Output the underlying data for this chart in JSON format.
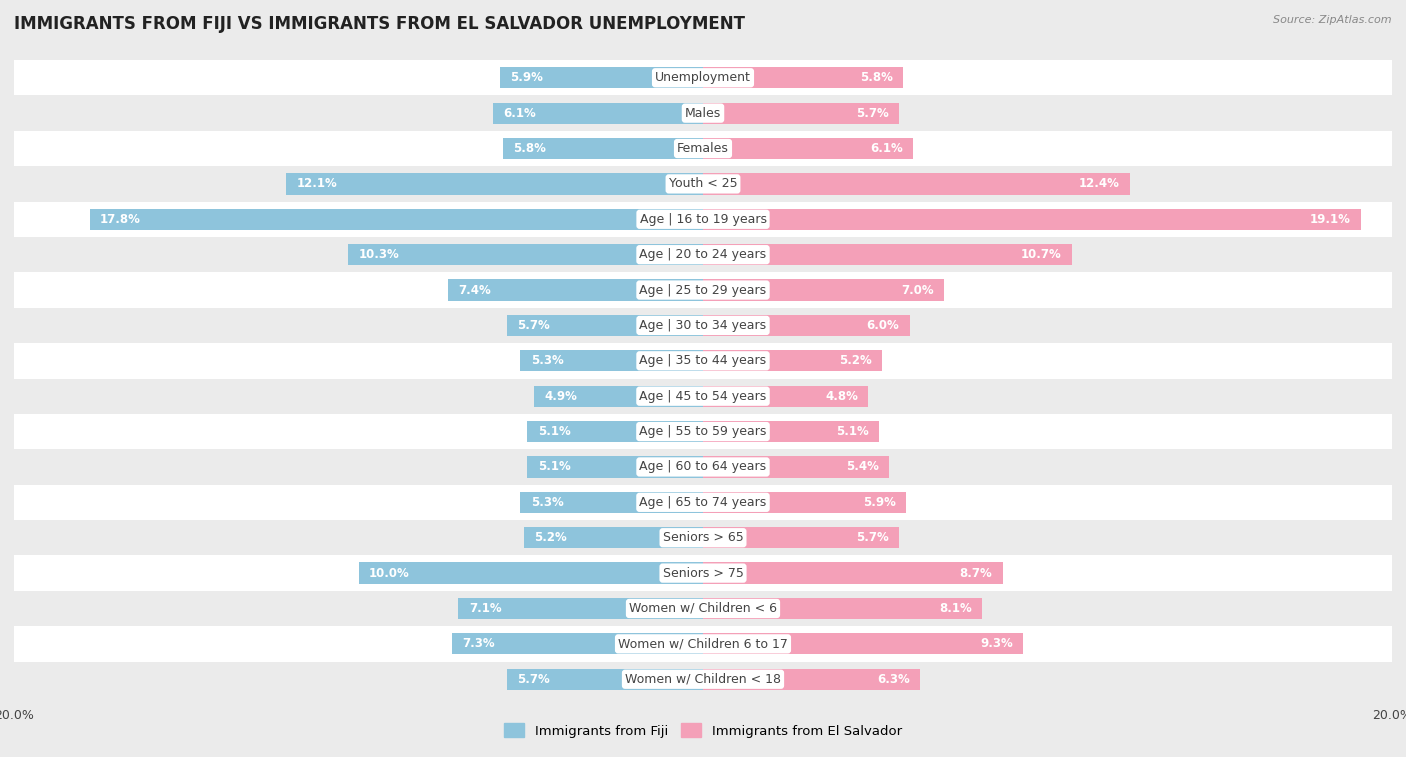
{
  "title": "IMMIGRANTS FROM FIJI VS IMMIGRANTS FROM EL SALVADOR UNEMPLOYMENT",
  "source": "Source: ZipAtlas.com",
  "categories": [
    "Unemployment",
    "Males",
    "Females",
    "Youth < 25",
    "Age | 16 to 19 years",
    "Age | 20 to 24 years",
    "Age | 25 to 29 years",
    "Age | 30 to 34 years",
    "Age | 35 to 44 years",
    "Age | 45 to 54 years",
    "Age | 55 to 59 years",
    "Age | 60 to 64 years",
    "Age | 65 to 74 years",
    "Seniors > 65",
    "Seniors > 75",
    "Women w/ Children < 6",
    "Women w/ Children 6 to 17",
    "Women w/ Children < 18"
  ],
  "fiji_values": [
    5.9,
    6.1,
    5.8,
    12.1,
    17.8,
    10.3,
    7.4,
    5.7,
    5.3,
    4.9,
    5.1,
    5.1,
    5.3,
    5.2,
    10.0,
    7.1,
    7.3,
    5.7
  ],
  "elsalvador_values": [
    5.8,
    5.7,
    6.1,
    12.4,
    19.1,
    10.7,
    7.0,
    6.0,
    5.2,
    4.8,
    5.1,
    5.4,
    5.9,
    5.7,
    8.7,
    8.1,
    9.3,
    6.3
  ],
  "fiji_color": "#8ec4dc",
  "elsalvador_color": "#f4a0b8",
  "fiji_label": "Immigrants from Fiji",
  "elsalvador_label": "Immigrants from El Salvador",
  "xlim": 20.0,
  "background_color": "#ebebeb",
  "row_color_even": "#ffffff",
  "row_color_odd": "#ebebeb",
  "title_fontsize": 12,
  "label_fontsize": 9,
  "value_fontsize": 8.5
}
